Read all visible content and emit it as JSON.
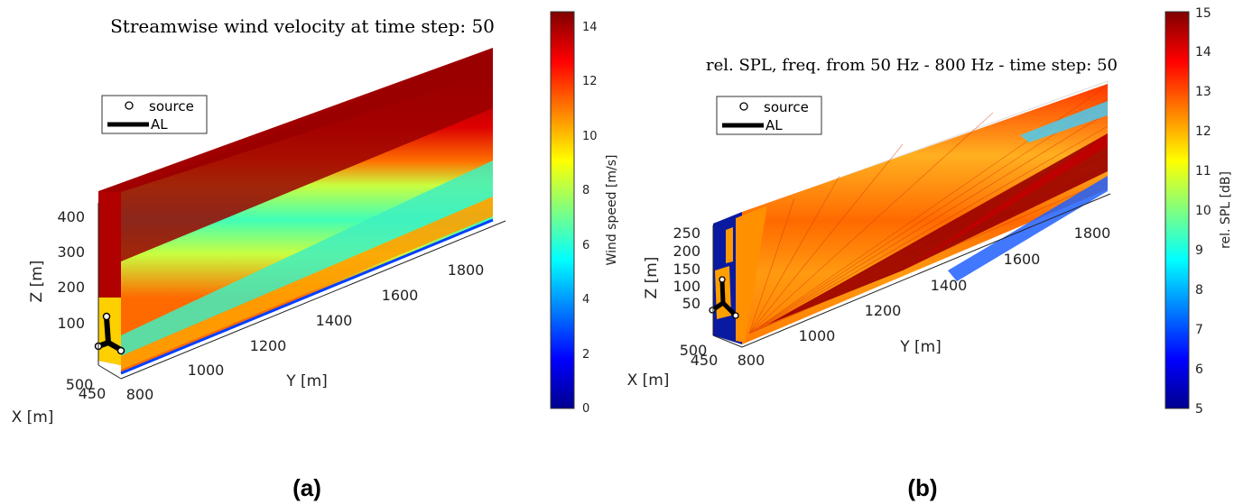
{
  "caption_a": "(a)",
  "caption_b": "(b)",
  "chart_data": [
    {
      "type": "heatmap",
      "title": "Streamwise wind velocity at time step: 50",
      "xlabel": "Y [m]",
      "ylabel": "Z [m]",
      "depthlabel": "X [m]",
      "y_ticks": [
        "800",
        "1000",
        "1200",
        "1400",
        "1600",
        "1800"
      ],
      "z_ticks": [
        "100",
        "200",
        "300",
        "400"
      ],
      "x_ticks": [
        "450",
        "500"
      ],
      "colorbar_label": "Wind speed [m/s]",
      "colorbar_ticks": [
        "0",
        "2",
        "4",
        "6",
        "8",
        "10",
        "12",
        "14"
      ],
      "colorbar_range": [
        0,
        14.6
      ],
      "colormap": "jet",
      "legend": [
        {
          "marker": "circle",
          "label": "source"
        },
        {
          "marker": "line",
          "label": "AL"
        }
      ],
      "legend_placement": "top-left"
    },
    {
      "type": "heatmap",
      "title": "rel. SPL, freq. from 50 Hz - 800 Hz - time step: 50",
      "xlabel": "Y [m]",
      "ylabel": "Z [m]",
      "depthlabel": "X [m]",
      "y_ticks": [
        "800",
        "1000",
        "1200",
        "1400",
        "1600",
        "1800"
      ],
      "z_ticks": [
        "50",
        "100",
        "150",
        "200",
        "250"
      ],
      "x_ticks": [
        "450",
        "500"
      ],
      "colorbar_label": "rel. SPL [dB]",
      "colorbar_ticks": [
        "5",
        "6",
        "7",
        "8",
        "9",
        "10",
        "11",
        "12",
        "13",
        "14",
        "15"
      ],
      "colorbar_range": [
        5,
        15
      ],
      "colormap": "jet",
      "legend": [
        {
          "marker": "circle",
          "label": "source"
        },
        {
          "marker": "line",
          "label": "AL"
        }
      ],
      "legend_placement": "top-left"
    }
  ]
}
